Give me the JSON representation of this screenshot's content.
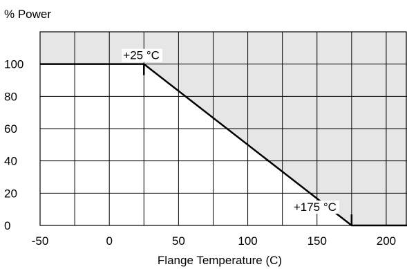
{
  "chart_data": {
    "type": "line",
    "title": "",
    "xlabel": "Flange Temperature (C)",
    "ylabel": "% Power",
    "xlim": [
      -50,
      215
    ],
    "ylim": [
      0,
      120
    ],
    "x_ticks": [
      -50,
      0,
      50,
      100,
      150,
      200
    ],
    "y_ticks": [
      0,
      20,
      40,
      60,
      80,
      100
    ],
    "grid": true,
    "series": [
      {
        "x": [
          -50,
          25,
          175,
          215
        ],
        "y": [
          100,
          100,
          0,
          0
        ]
      }
    ],
    "annotations": [
      {
        "text": "+25  °C",
        "x": 25,
        "y": 100
      },
      {
        "text": "+175  °C",
        "x": 175,
        "y": 0
      }
    ],
    "colors": {
      "shaded_region": "#e6e6e6",
      "line": "#000000",
      "grid": "#000000"
    }
  }
}
